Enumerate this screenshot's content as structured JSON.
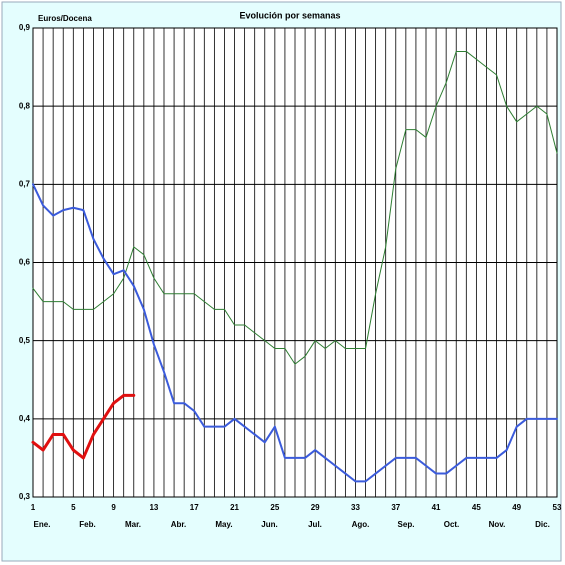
{
  "chart_data": {
    "type": "line",
    "title": "Evolución por semanas",
    "y_label": "Euros/Docena",
    "x": [
      1,
      2,
      3,
      4,
      5,
      6,
      7,
      8,
      9,
      10,
      11,
      12,
      13,
      14,
      15,
      16,
      17,
      18,
      19,
      20,
      21,
      22,
      23,
      24,
      25,
      26,
      27,
      28,
      29,
      30,
      31,
      32,
      33,
      34,
      35,
      36,
      37,
      38,
      39,
      40,
      41,
      42,
      43,
      44,
      45,
      46,
      47,
      48,
      49,
      50,
      51,
      52,
      53
    ],
    "xlim": [
      1,
      53
    ],
    "xticks": [
      1,
      5,
      9,
      13,
      17,
      21,
      25,
      29,
      33,
      37,
      41,
      45,
      49,
      53
    ],
    "ylim": [
      0.3,
      0.9
    ],
    "yticks": [
      {
        "value": 0.3,
        "label": "0,3"
      },
      {
        "value": 0.4,
        "label": "0,4"
      },
      {
        "value": 0.5,
        "label": "0,5"
      },
      {
        "value": 0.6,
        "label": "0,6"
      },
      {
        "value": 0.7,
        "label": "0,7"
      },
      {
        "value": 0.8,
        "label": "0,8"
      },
      {
        "value": 0.9,
        "label": "0,9"
      }
    ],
    "month_labels": [
      "Ene.",
      "Feb.",
      "Mar.",
      "Abr.",
      "May.",
      "Jun.",
      "Jul.",
      "Ago.",
      "Sep.",
      "Oct.",
      "Nov.",
      "Dic."
    ],
    "grid": true,
    "series": [
      {
        "color": "#2e7d32",
        "width": 1,
        "values": [
          0.567,
          0.55,
          0.55,
          0.55,
          0.54,
          0.54,
          0.54,
          0.55,
          0.56,
          0.58,
          0.62,
          0.61,
          0.58,
          0.56,
          0.56,
          0.56,
          0.56,
          0.55,
          0.54,
          0.54,
          0.52,
          0.52,
          0.51,
          0.5,
          0.49,
          0.49,
          0.47,
          0.48,
          0.5,
          0.49,
          0.5,
          0.49,
          0.49,
          0.49,
          0.56,
          0.62,
          0.72,
          0.77,
          0.77,
          0.76,
          0.8,
          0.83,
          0.87,
          0.87,
          0.86,
          0.85,
          0.84,
          0.8,
          0.78,
          0.79,
          0.8,
          0.79,
          0.74
        ]
      },
      {
        "color": "#3b5bdb",
        "width": 2,
        "values": [
          0.7,
          0.673,
          0.66,
          0.667,
          0.67,
          0.667,
          0.63,
          0.605,
          0.585,
          0.59,
          0.57,
          0.54,
          0.495,
          0.46,
          0.42,
          0.42,
          0.41,
          0.39,
          0.39,
          0.39,
          0.4,
          0.39,
          0.38,
          0.37,
          0.39,
          0.35,
          0.35,
          0.35,
          0.36,
          0.35,
          0.34,
          0.33,
          0.32,
          0.32,
          0.33,
          0.34,
          0.35,
          0.35,
          0.35,
          0.34,
          0.33,
          0.33,
          0.34,
          0.35,
          0.35,
          0.35,
          0.35,
          0.36,
          0.39,
          0.4,
          0.4,
          0.4,
          0.4
        ]
      },
      {
        "color": "#e01010",
        "width": 3,
        "values": [
          0.37,
          0.36,
          0.38,
          0.38,
          0.36,
          0.35,
          0.38,
          0.4,
          0.42,
          0.43,
          0.43,
          null,
          null,
          null,
          null,
          null,
          null,
          null,
          null,
          null,
          null,
          null,
          null,
          null,
          null,
          null,
          null,
          null,
          null,
          null,
          null,
          null,
          null,
          null,
          null,
          null,
          null,
          null,
          null,
          null,
          null,
          null,
          null,
          null,
          null,
          null,
          null,
          null,
          null,
          null,
          null,
          null,
          null
        ]
      }
    ]
  }
}
